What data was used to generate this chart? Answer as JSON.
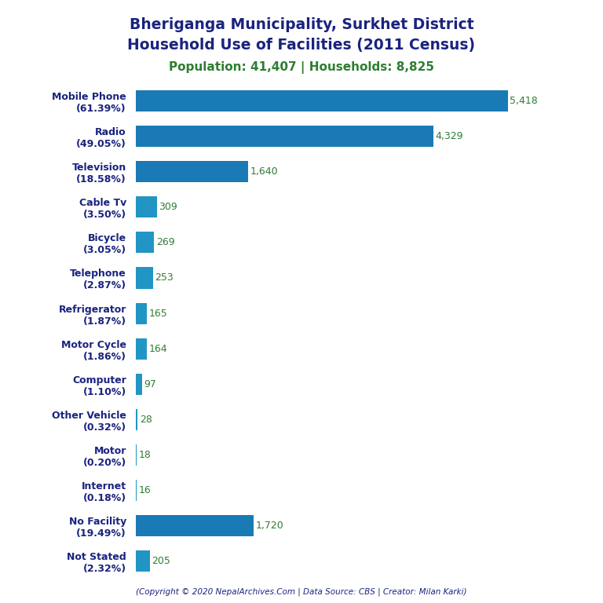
{
  "title_line1": "Bheriganga Municipality, Surkhet District",
  "title_line2": "Household Use of Facilities (2011 Census)",
  "subtitle": "Population: 41,407 | Households: 8,825",
  "footer": "(Copyright © 2020 NepalArchives.Com | Data Source: CBS | Creator: Milan Karki)",
  "categories": [
    "Mobile Phone\n(61.39%)",
    "Radio\n(49.05%)",
    "Television\n(18.58%)",
    "Cable Tv\n(3.50%)",
    "Bicycle\n(3.05%)",
    "Telephone\n(2.87%)",
    "Refrigerator\n(1.87%)",
    "Motor Cycle\n(1.86%)",
    "Computer\n(1.10%)",
    "Other Vehicle\n(0.32%)",
    "Motor\n(0.20%)",
    "Internet\n(0.18%)",
    "No Facility\n(19.49%)",
    "Not Stated\n(2.32%)"
  ],
  "values": [
    5418,
    4329,
    1640,
    309,
    269,
    253,
    165,
    164,
    97,
    28,
    18,
    16,
    1720,
    205
  ],
  "bar_color_small": "#2196c4",
  "bar_color_large": "#1a7ab5",
  "title_color": "#1a237e",
  "subtitle_color": "#2e7d32",
  "value_color": "#2e7d32",
  "footer_color": "#1a237e",
  "background_color": "#ffffff",
  "xlim": [
    0,
    6100
  ]
}
